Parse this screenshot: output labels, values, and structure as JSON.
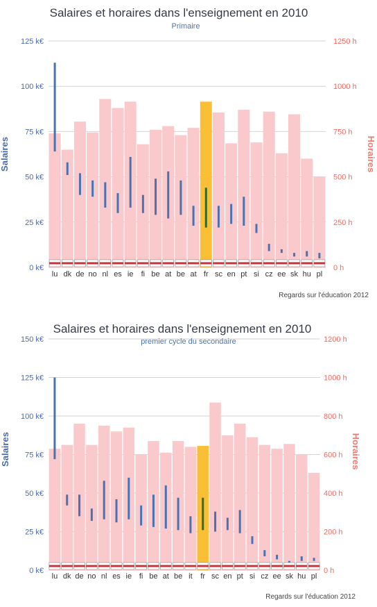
{
  "colors": {
    "hours_bar": "#f9c9cc",
    "highlight_bar": "#fbbf36",
    "salary_line": "#4a72b0",
    "salary_line_highlight": "#2f6b2a",
    "left_axis": "#4a6aa8",
    "right_axis": "#ef6b62",
    "grid": "#d2d2d2"
  },
  "chart_data": [
    {
      "type": "bar",
      "title": "Salaires et horaires dans l'enseignement en 2010",
      "subtitle": "Primaire",
      "ylabel": "Salaires",
      "y2label": "Horaires",
      "credit": "Regards sur l'éducation 2012",
      "ylim": [
        0,
        125
      ],
      "y_ticks": [
        "0 k€",
        "25 k€",
        "50 k€",
        "75 k€",
        "100 k€",
        "125 k€"
      ],
      "y2lim": [
        0,
        1250
      ],
      "y2_ticks": [
        "0 h",
        "250 h",
        "500 h",
        "750 h",
        "1000 h",
        "1250 h"
      ],
      "categories": [
        "lu",
        "dk",
        "de",
        "no",
        "nl",
        "es",
        "ie",
        "fi",
        "be",
        "at",
        "be",
        "at",
        "fr",
        "sc",
        "en",
        "pt",
        "si",
        "cz",
        "ee",
        "sk",
        "hu",
        "pl"
      ],
      "highlight": "fr",
      "series": [
        {
          "kind": "bar",
          "values": [
            740,
            650,
            805,
            745,
            930,
            880,
            915,
            680,
            760,
            780,
            730,
            770,
            915,
            855,
            685,
            870,
            690,
            860,
            630,
            845,
            600,
            500
          ]
        },
        {
          "kind": "range",
          "values": [
            [
              64,
              113
            ],
            [
              51,
              58
            ],
            [
              40,
              52
            ],
            [
              39,
              48
            ],
            [
              33,
              47
            ],
            [
              30,
              41
            ],
            [
              33,
              61
            ],
            [
              30,
              40
            ],
            [
              29,
              49
            ],
            [
              27,
              53
            ],
            [
              29,
              48
            ],
            [
              23,
              34
            ],
            [
              22,
              44
            ],
            [
              22,
              34
            ],
            [
              24,
              35
            ],
            [
              23,
              39
            ],
            [
              19,
              24
            ],
            [
              9,
              13
            ],
            [
              8,
              10
            ],
            [
              6,
              8
            ],
            [
              6,
              9
            ],
            [
              5,
              8
            ]
          ]
        }
      ]
    },
    {
      "type": "bar",
      "title": "Salaires et horaires dans l'enseignement en 2010",
      "subtitle": "premier cycle du secondaire",
      "ylabel": "Salaires",
      "y2label": "Horaires",
      "credit": "Regards sur l'éducation 2012",
      "ylim": [
        0,
        150
      ],
      "y_ticks": [
        "0 k€",
        "25 k€",
        "50 k€",
        "75 k€",
        "100 k€",
        "125 k€",
        "150 k€"
      ],
      "y2lim": [
        0,
        1200
      ],
      "y2_ticks": [
        "0 h",
        "200 h",
        "400 h",
        "600 h",
        "800 h",
        "1000 h",
        "1200 h"
      ],
      "categories": [
        "lu",
        "dk",
        "de",
        "no",
        "nl",
        "es",
        "ie",
        "fi",
        "be",
        "at",
        "be",
        "it",
        "fr",
        "sc",
        "en",
        "pt",
        "si",
        "cz",
        "ee",
        "sk",
        "hu",
        "pl"
      ],
      "highlight": "fr",
      "series": [
        {
          "kind": "bar",
          "values": [
            630,
            650,
            760,
            650,
            750,
            720,
            740,
            600,
            670,
            610,
            670,
            640,
            645,
            870,
            700,
            760,
            690,
            650,
            630,
            655,
            600,
            505
          ]
        },
        {
          "kind": "range",
          "values": [
            [
              72,
              125
            ],
            [
              42,
              49
            ],
            [
              35,
              49
            ],
            [
              32,
              40
            ],
            [
              33,
              58
            ],
            [
              31,
              46
            ],
            [
              33,
              60
            ],
            [
              29,
              42
            ],
            [
              28,
              49
            ],
            [
              27,
              55
            ],
            [
              26,
              47
            ],
            [
              24,
              35
            ],
            [
              26,
              47
            ],
            [
              25,
              38
            ],
            [
              26,
              34
            ],
            [
              24,
              39
            ],
            [
              17,
              22
            ],
            [
              9,
              13
            ],
            [
              7,
              10
            ],
            [
              5,
              6
            ],
            [
              6,
              9
            ],
            [
              6,
              8
            ]
          ]
        }
      ]
    }
  ]
}
